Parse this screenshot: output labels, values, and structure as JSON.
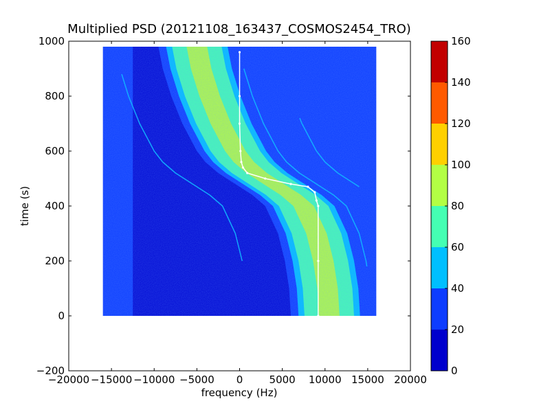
{
  "chart_data": {
    "type": "heatmap",
    "title": "Multiplied PSD (20121108_163437_COSMOS2454_TRO)",
    "xlabel": "frequency (Hz)",
    "ylabel": "time (s)",
    "xlim": [
      -20000,
      20000
    ],
    "ylim": [
      -200,
      1000
    ],
    "xticks": [
      -20000,
      -15000,
      -10000,
      -5000,
      0,
      5000,
      10000,
      15000,
      20000
    ],
    "xtick_labels": [
      "−20000",
      "−15000",
      "−10000",
      "−5000",
      "0",
      "5000",
      "10000",
      "15000",
      "20000"
    ],
    "yticks": [
      -200,
      0,
      200,
      400,
      600,
      800,
      1000
    ],
    "ytick_labels": [
      "−200",
      "0",
      "200",
      "400",
      "600",
      "800",
      "1000"
    ],
    "image_extent": {
      "x": [
        -16000,
        16000
      ],
      "y": [
        0,
        980
      ]
    },
    "band_trace": {
      "description_free": true,
      "time": [
        980,
        900,
        800,
        700,
        600,
        560,
        520,
        480,
        440,
        400,
        300,
        200,
        100,
        0
      ],
      "frequency_center": [
        -5000,
        -4500,
        -3500,
        -2200,
        -500,
        500,
        2000,
        4000,
        6000,
        7500,
        9000,
        9800,
        10300,
        10500
      ]
    },
    "white_trace": {
      "frequency": [
        0,
        0,
        0,
        100,
        200,
        400,
        900,
        3000,
        6000,
        8000,
        8800,
        9000,
        9200,
        9200,
        9200
      ],
      "time": [
        960,
        800,
        700,
        600,
        560,
        540,
        520,
        500,
        480,
        470,
        450,
        420,
        400,
        200,
        0
      ]
    },
    "colorbar": {
      "min": 0,
      "max": 160,
      "ticks": [
        0,
        20,
        40,
        60,
        80,
        100,
        120,
        140,
        160
      ],
      "colors": [
        "#0000cd",
        "#0d3dff",
        "#00bfff",
        "#44ffb3",
        "#b3ff44",
        "#ffd000",
        "#ff5a00",
        "#c20000"
      ]
    },
    "grid": false
  }
}
